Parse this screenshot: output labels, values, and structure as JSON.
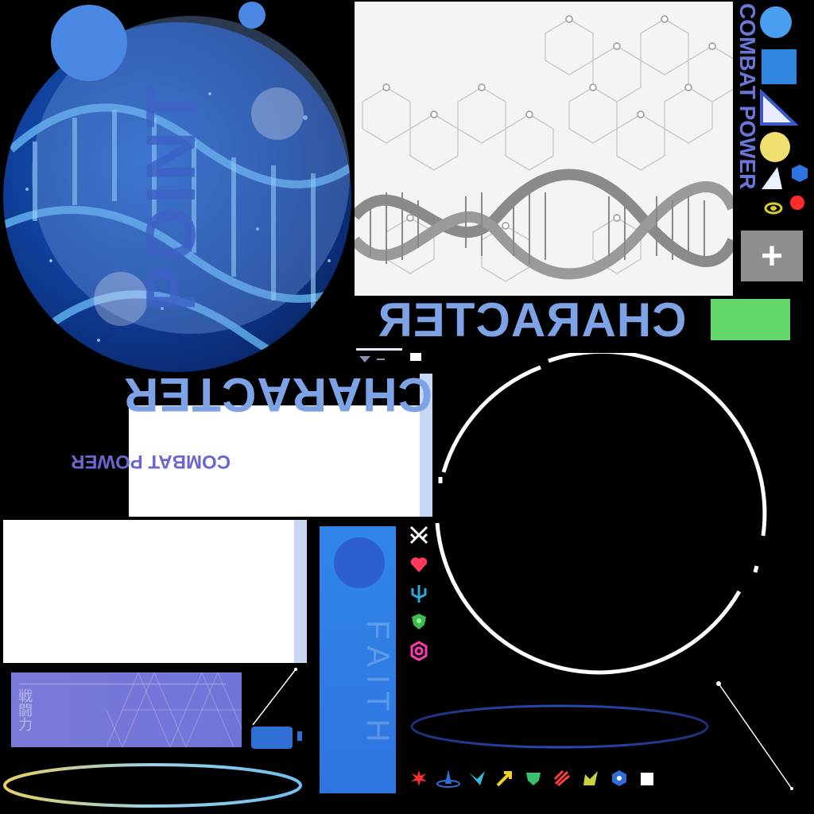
{
  "labels": {
    "point": "POINT",
    "combat_power": "COMBAT POWER",
    "character": "CHARACTER",
    "faith": "FAITH",
    "cjk_label": "戦闘力",
    "plus": "+"
  },
  "colors": {
    "blue_accent": "#3f7fe0",
    "green_button": "#62d96a",
    "purple_card": "#6f74d8",
    "faith_bar": "#2f7fe4",
    "gray_button": "#8e8e8e"
  },
  "icons": {
    "side_shapes": [
      "circle-blue",
      "square-blue",
      "triangle-blue",
      "circle-yellow",
      "hex-blue",
      "triangle-white",
      "circle-red",
      "swirl-yellow"
    ],
    "status_icons": [
      "crossed-swords",
      "heart",
      "trident",
      "shield",
      "gear"
    ],
    "bottom_icons": [
      "burst-red",
      "wave-blue",
      "wing-cyan",
      "arrow-yellow",
      "mask-green",
      "claw-red",
      "leaf-yellow",
      "hex-blue",
      "square-white"
    ]
  }
}
